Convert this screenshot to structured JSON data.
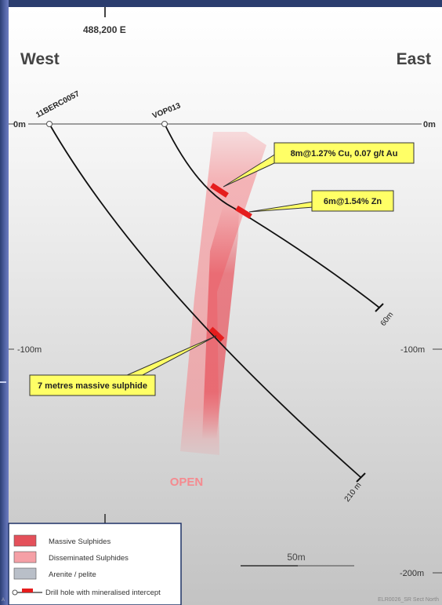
{
  "header": {
    "easting": "488,200 E",
    "west": "West",
    "east": "East"
  },
  "depth": {
    "left_0": "0m",
    "right_0": "0m",
    "left_100": "-100m",
    "right_100": "-100m",
    "right_200": "-200m"
  },
  "holes": [
    {
      "name": "11BERC0057",
      "end_depth": "210 m"
    },
    {
      "name": "VOP013",
      "end_depth": "60m"
    }
  ],
  "callouts": {
    "cu_au": "8m@1.27% Cu, 0.07 g/t Au",
    "zn": "6m@1.54% Zn",
    "massive": "7 metres massive sulphide"
  },
  "open_label": "OPEN",
  "scale_bar": "50m",
  "legend": {
    "items": [
      {
        "label": "Massive Sulphides",
        "color": "#e4505a"
      },
      {
        "label": "Disseminated Sulphides",
        "color": "#f5a0a6"
      },
      {
        "label": "Arenite / pelite",
        "color": "#b9bfc8"
      },
      {
        "label": "Drill hole with mineralised intercept",
        "color": "#e51d1d"
      }
    ]
  },
  "footer": {
    "ref": "ELR0026_SR Sect North",
    "corner": "A"
  },
  "colors": {
    "panel_top": "#ffffff",
    "panel_bottom": "#c4c4c4",
    "callout_fill": "#ffff66",
    "intercept": "#e51d1d",
    "border": "#1e3266"
  }
}
